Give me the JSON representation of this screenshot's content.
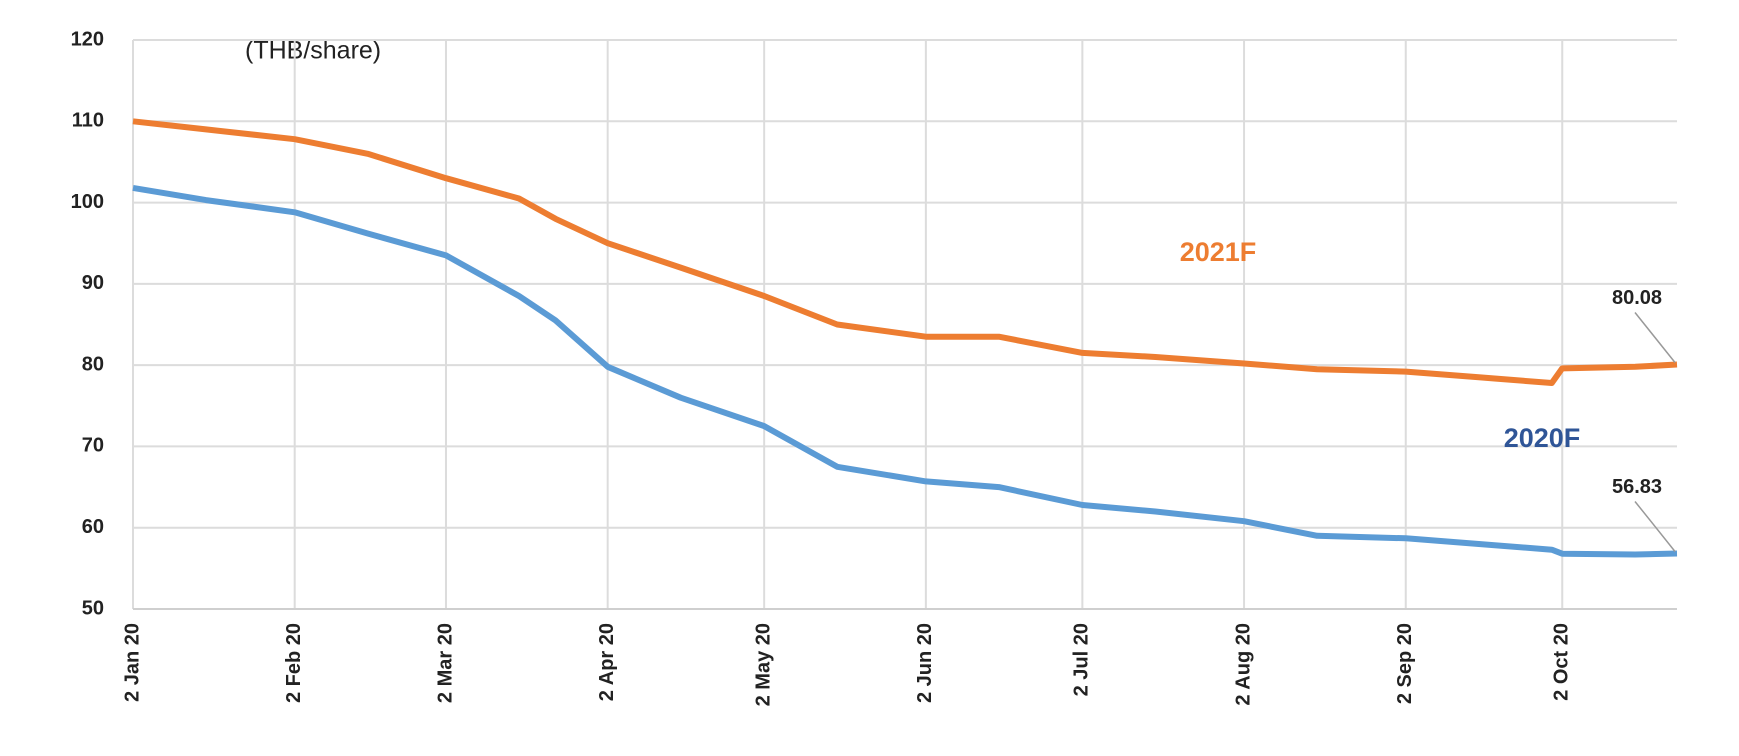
{
  "chart_data": {
    "type": "line",
    "y_label": "(THB/share)",
    "x": [
      "2020-01-02",
      "2020-01-16",
      "2020-02-02",
      "2020-02-16",
      "2020-03-02",
      "2020-03-16",
      "2020-03-23",
      "2020-04-02",
      "2020-04-16",
      "2020-05-02",
      "2020-05-16",
      "2020-06-02",
      "2020-06-16",
      "2020-07-02",
      "2020-07-16",
      "2020-08-02",
      "2020-08-16",
      "2020-09-02",
      "2020-09-16",
      "2020-09-30",
      "2020-10-02",
      "2020-10-16",
      "2020-10-24"
    ],
    "series": [
      {
        "name": "2021F",
        "color": "#ed7d31",
        "values": [
          110,
          109,
          107.8,
          106,
          103,
          100.5,
          98,
          95,
          92,
          88.5,
          85,
          83.5,
          83.5,
          81.5,
          81,
          80.2,
          79.5,
          79.2,
          78.5,
          77.8,
          79.6,
          79.8,
          80.08
        ]
      },
      {
        "name": "2020F",
        "color": "#5b9bd5",
        "values": [
          101.8,
          100.3,
          98.8,
          96.2,
          93.5,
          88.5,
          85.5,
          79.8,
          76,
          72.5,
          67.5,
          65.7,
          65,
          62.8,
          62,
          60.8,
          59,
          58.7,
          58,
          57.3,
          56.8,
          56.7,
          56.83
        ]
      }
    ],
    "annotations": [
      {
        "text": "80.08",
        "series": 0
      },
      {
        "text": "56.83",
        "series": 1
      }
    ],
    "xlim": [
      "2020-01-02",
      "2020-10-24"
    ],
    "xticks": [
      {
        "value": "2020-01-02",
        "label": "2 Jan 20"
      },
      {
        "value": "2020-02-02",
        "label": "2 Feb 20"
      },
      {
        "value": "2020-03-02",
        "label": "2 Mar 20"
      },
      {
        "value": "2020-04-02",
        "label": "2 Apr 20"
      },
      {
        "value": "2020-05-02",
        "label": "2 May 20"
      },
      {
        "value": "2020-06-02",
        "label": "2 Jun 20"
      },
      {
        "value": "2020-07-02",
        "label": "2 Jul 20"
      },
      {
        "value": "2020-08-02",
        "label": "2 Aug 20"
      },
      {
        "value": "2020-09-02",
        "label": "2 Sep 20"
      },
      {
        "value": "2020-10-02",
        "label": "2 Oct 20"
      }
    ],
    "ylim": [
      50,
      120
    ],
    "yticks": [
      50,
      60,
      70,
      80,
      90,
      100,
      110,
      120
    ],
    "grid": true
  }
}
